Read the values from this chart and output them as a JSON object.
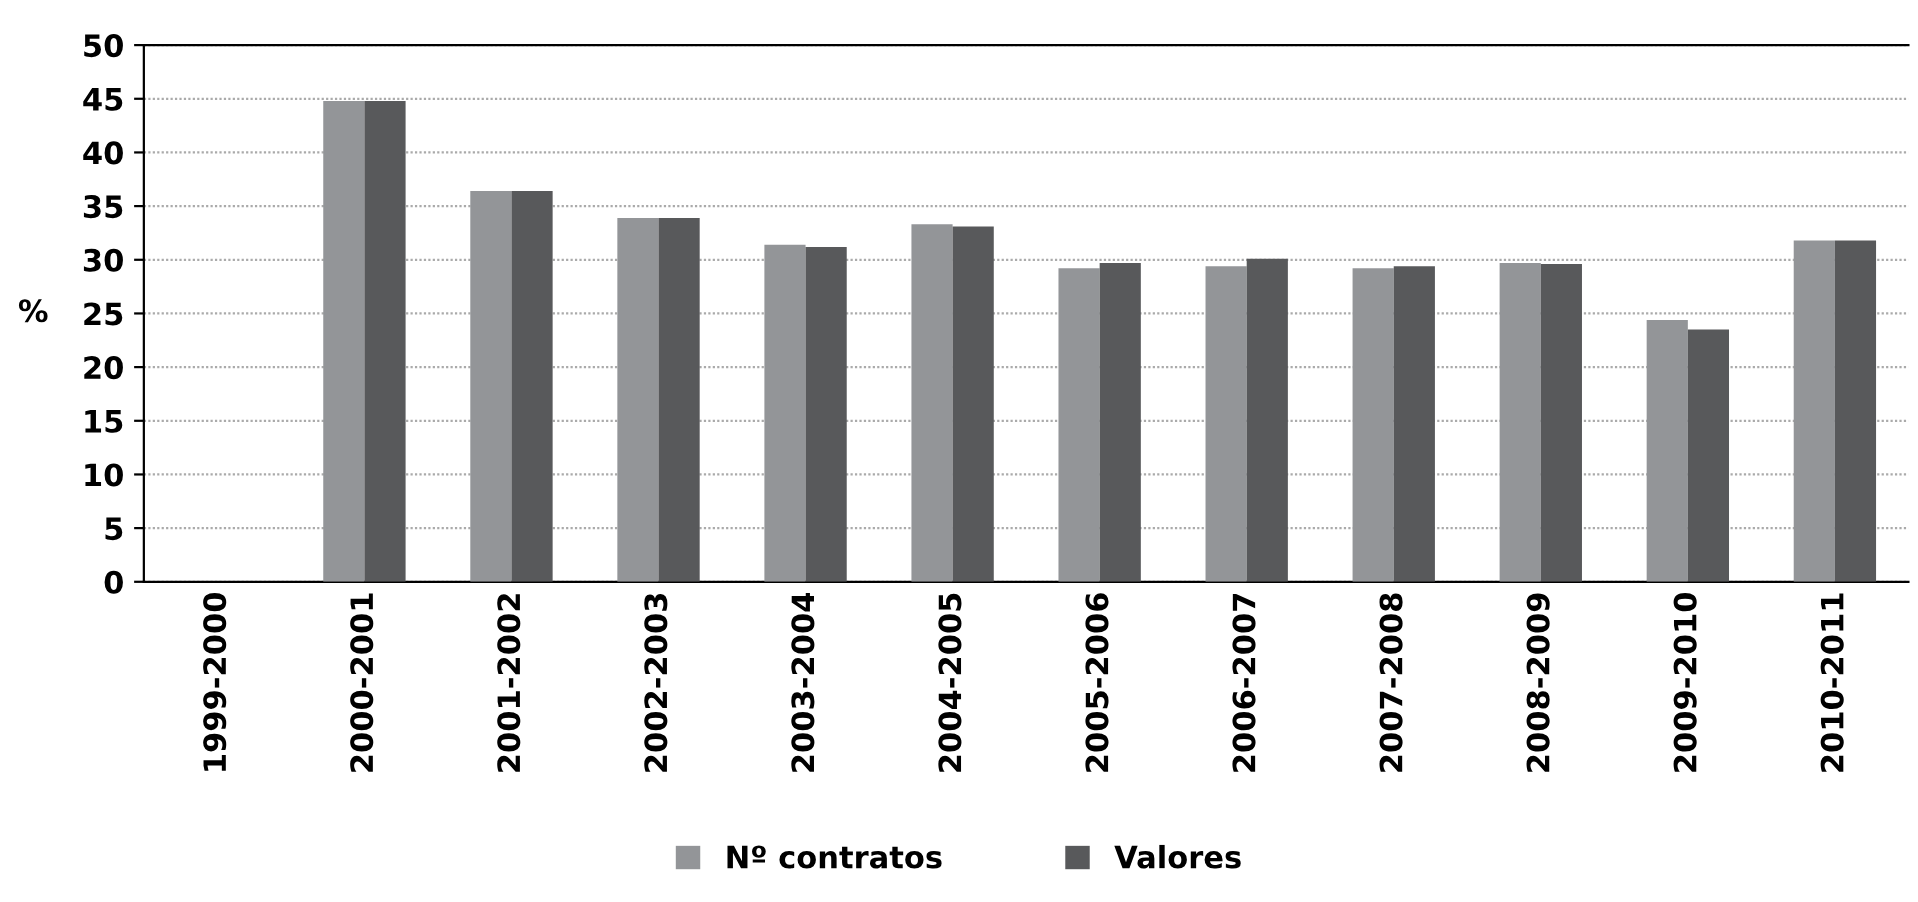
{
  "chart_data": {
    "type": "bar",
    "ylabel": "%",
    "categories": [
      "1999-2000",
      "2000-2001",
      "2001-2002",
      "2002-2003",
      "2003-2004",
      "2004-2005",
      "2005-2006",
      "2006-2007",
      "2007-2008",
      "2008-2009",
      "2009-2010",
      "2010-2011"
    ],
    "series": [
      {
        "name": "Nº contratos",
        "color": "#939598",
        "values": [
          null,
          44.8,
          36.4,
          33.9,
          31.4,
          33.3,
          29.2,
          29.4,
          29.2,
          29.7,
          24.4,
          31.8
        ]
      },
      {
        "name": "Valores",
        "color": "#58595b",
        "values": [
          null,
          44.8,
          36.4,
          33.9,
          31.2,
          33.1,
          29.7,
          30.1,
          29.4,
          29.6,
          23.5,
          31.8
        ]
      }
    ],
    "ylim": [
      0,
      50
    ],
    "yticks": [
      0,
      5,
      10,
      15,
      20,
      25,
      30,
      35,
      40,
      45,
      50
    ],
    "grid": "y",
    "legend": "bottom"
  }
}
